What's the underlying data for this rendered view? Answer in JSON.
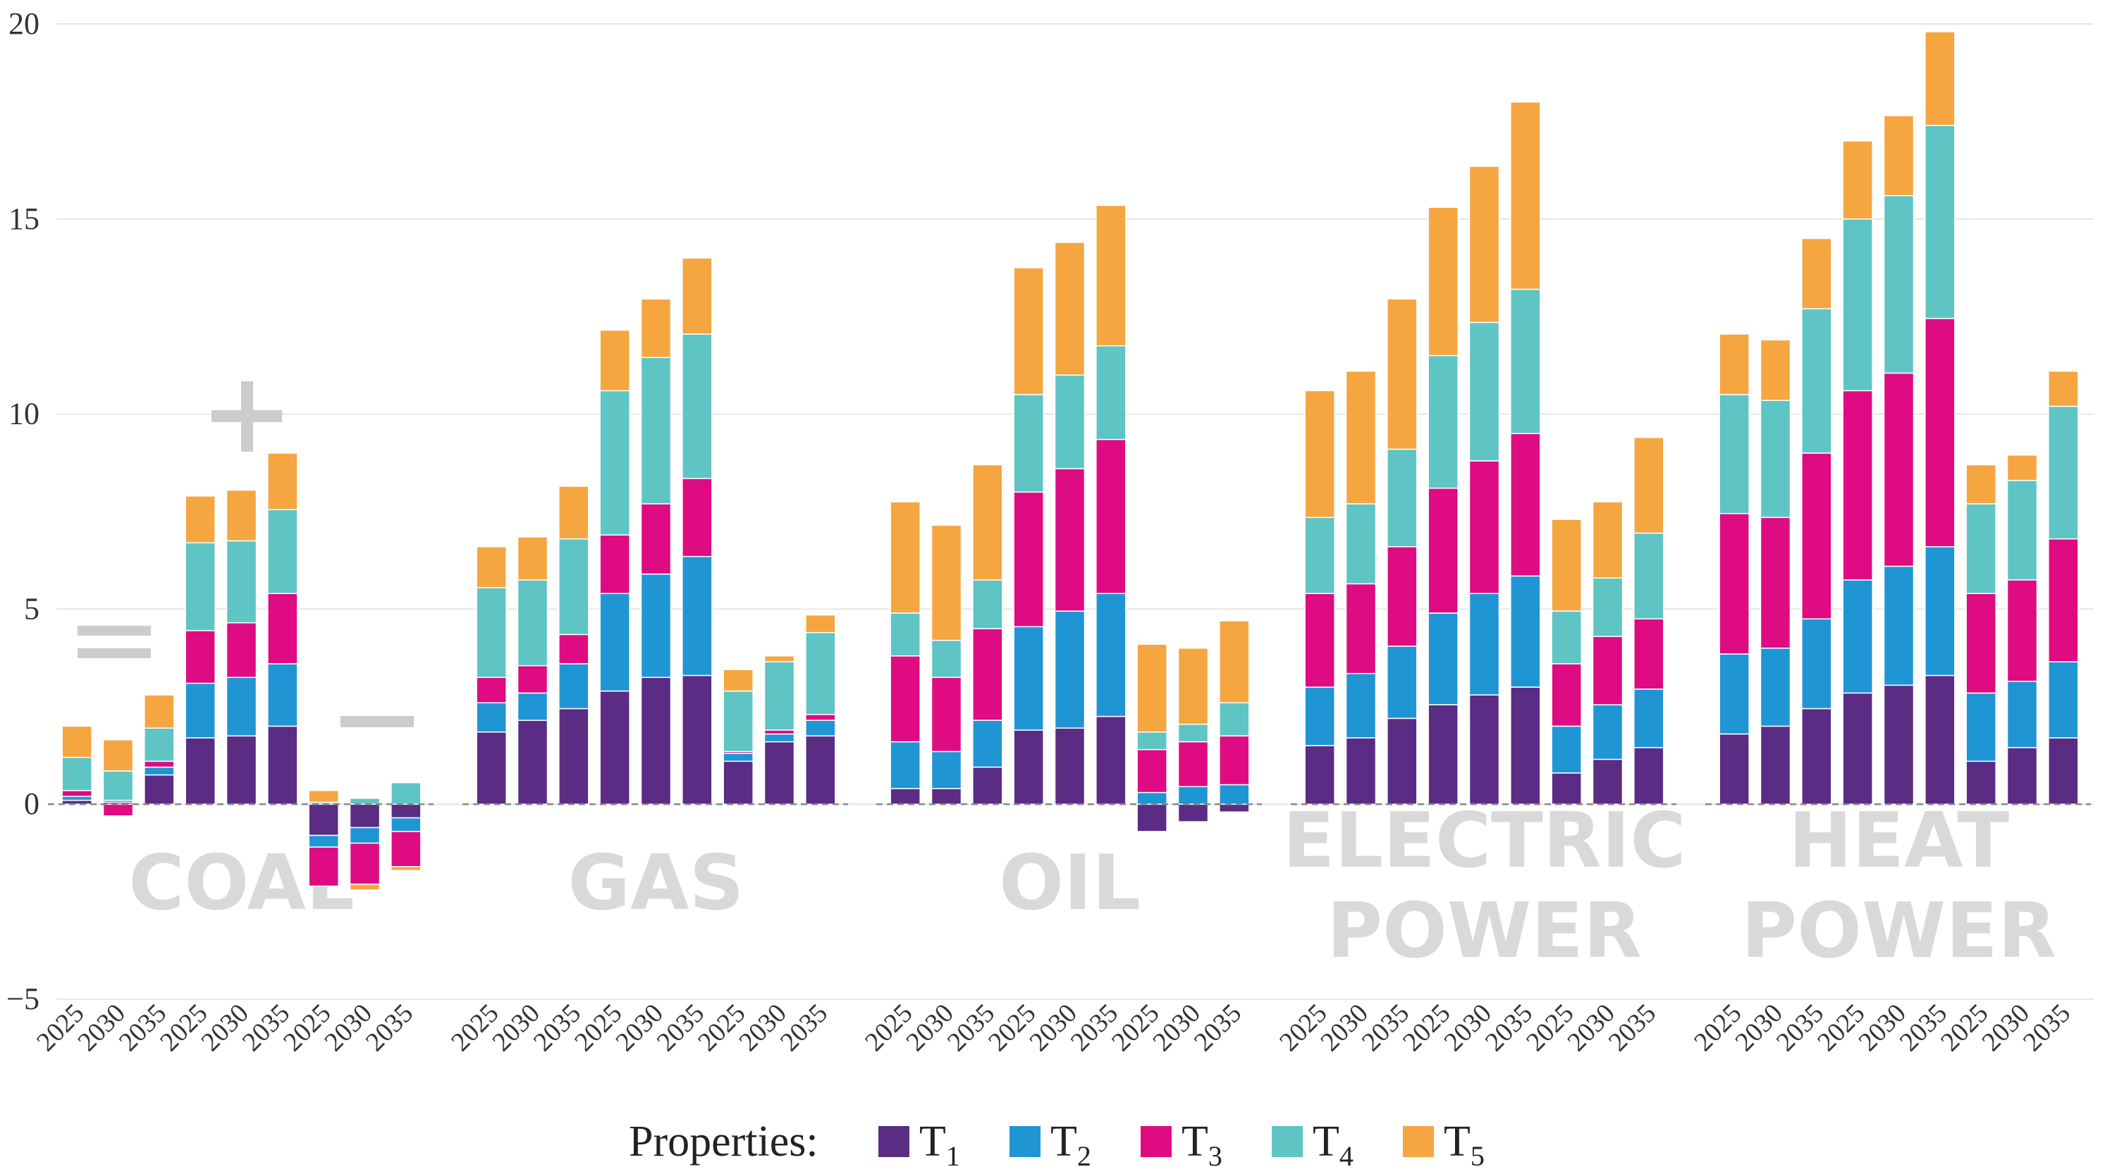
{
  "chart_data": {
    "type": "bar",
    "stacked": true,
    "title": "",
    "xlabel": "",
    "ylabel": "",
    "ylim": [
      -5,
      20
    ],
    "yticks": [
      -5,
      0,
      5,
      10,
      15,
      20
    ],
    "ytick_labels": [
      "−5",
      "0",
      "5",
      "10",
      "15",
      "20"
    ],
    "grid": true,
    "years": [
      "2025",
      "2030",
      "2035"
    ],
    "scenario_marks": [
      {
        "id": "equal",
        "label": "="
      },
      {
        "id": "plus",
        "label": "+"
      },
      {
        "id": "minus",
        "label": "−"
      }
    ],
    "legend": {
      "title": "Properties:",
      "placement": "bottom-center",
      "items": [
        {
          "key": "T1",
          "base": "T",
          "sub": "1",
          "color": "#5b2c83"
        },
        {
          "key": "T2",
          "base": "T",
          "sub": "2",
          "color": "#1f95d4"
        },
        {
          "key": "T3",
          "base": "T",
          "sub": "3",
          "color": "#de0b82"
        },
        {
          "key": "T4",
          "base": "T",
          "sub": "4",
          "color": "#5ec4c4"
        },
        {
          "key": "T5",
          "base": "T",
          "sub": "5",
          "color": "#f5a640"
        }
      ]
    },
    "series_order": [
      "T1",
      "T2",
      "T3",
      "T4",
      "T5"
    ],
    "groups": [
      {
        "name": "COAL",
        "label_lines": [
          "COAL"
        ],
        "bars": [
          {
            "year": "2025",
            "scenario": "equal",
            "values": {
              "T1": 0.1,
              "T2": 0.1,
              "T3": 0.15,
              "T4": 0.85,
              "T5": 0.8
            }
          },
          {
            "year": "2030",
            "scenario": "equal",
            "values": {
              "T1": 0.05,
              "T2": 0.05,
              "T3": -0.3,
              "T4": 0.75,
              "T5": 0.8
            }
          },
          {
            "year": "2035",
            "scenario": "equal",
            "values": {
              "T1": 0.75,
              "T2": 0.2,
              "T3": 0.15,
              "T4": 0.85,
              "T5": 0.85
            }
          },
          {
            "year": "2025",
            "scenario": "plus",
            "values": {
              "T1": 1.7,
              "T2": 1.4,
              "T3": 1.35,
              "T4": 2.25,
              "T5": 1.2
            }
          },
          {
            "year": "2030",
            "scenario": "plus",
            "values": {
              "T1": 1.75,
              "T2": 1.5,
              "T3": 1.4,
              "T4": 2.1,
              "T5": 1.3
            }
          },
          {
            "year": "2035",
            "scenario": "plus",
            "values": {
              "T1": 2.0,
              "T2": 1.6,
              "T3": 1.8,
              "T4": 2.15,
              "T5": 1.45
            }
          },
          {
            "year": "2025",
            "scenario": "minus",
            "values": {
              "T1": -0.8,
              "T2": -0.3,
              "T3": -1.0,
              "T4": 0.05,
              "T5": 0.3
            }
          },
          {
            "year": "2030",
            "scenario": "minus",
            "values": {
              "T1": -0.6,
              "T2": -0.4,
              "T3": -1.05,
              "T4": 0.15,
              "T5": -0.15
            }
          },
          {
            "year": "2035",
            "scenario": "minus",
            "values": {
              "T1": -0.35,
              "T2": -0.35,
              "T3": -0.9,
              "T4": 0.55,
              "T5": -0.1
            }
          }
        ]
      },
      {
        "name": "GAS",
        "label_lines": [
          "GAS"
        ],
        "bars": [
          {
            "year": "2025",
            "scenario": "equal",
            "values": {
              "T1": 1.85,
              "T2": 0.75,
              "T3": 0.65,
              "T4": 2.3,
              "T5": 1.05
            }
          },
          {
            "year": "2030",
            "scenario": "equal",
            "values": {
              "T1": 2.15,
              "T2": 0.7,
              "T3": 0.7,
              "T4": 2.2,
              "T5": 1.1
            }
          },
          {
            "year": "2035",
            "scenario": "equal",
            "values": {
              "T1": 2.45,
              "T2": 1.15,
              "T3": 0.75,
              "T4": 2.45,
              "T5": 1.35
            }
          },
          {
            "year": "2025",
            "scenario": "plus",
            "values": {
              "T1": 2.9,
              "T2": 2.5,
              "T3": 1.5,
              "T4": 3.7,
              "T5": 1.55
            }
          },
          {
            "year": "2030",
            "scenario": "plus",
            "values": {
              "T1": 3.25,
              "T2": 2.65,
              "T3": 1.8,
              "T4": 3.75,
              "T5": 1.5
            }
          },
          {
            "year": "2035",
            "scenario": "plus",
            "values": {
              "T1": 3.3,
              "T2": 3.05,
              "T3": 2.0,
              "T4": 3.7,
              "T5": 1.95
            }
          },
          {
            "year": "2025",
            "scenario": "minus",
            "values": {
              "T1": 1.1,
              "T2": 0.2,
              "T3": 0.05,
              "T4": 1.55,
              "T5": 0.55
            }
          },
          {
            "year": "2030",
            "scenario": "minus",
            "values": {
              "T1": 1.6,
              "T2": 0.2,
              "T3": 0.1,
              "T4": 1.75,
              "T5": 0.15
            }
          },
          {
            "year": "2035",
            "scenario": "minus",
            "values": {
              "T1": 1.75,
              "T2": 0.4,
              "T3": 0.15,
              "T4": 2.1,
              "T5": 0.45
            }
          }
        ]
      },
      {
        "name": "OIL",
        "label_lines": [
          "OIL"
        ],
        "bars": [
          {
            "year": "2025",
            "scenario": "equal",
            "values": {
              "T1": 0.4,
              "T2": 1.2,
              "T3": 2.2,
              "T4": 1.1,
              "T5": 2.85
            }
          },
          {
            "year": "2030",
            "scenario": "equal",
            "values": {
              "T1": 0.4,
              "T2": 0.95,
              "T3": 1.9,
              "T4": 0.95,
              "T5": 2.95
            }
          },
          {
            "year": "2035",
            "scenario": "equal",
            "values": {
              "T1": 0.95,
              "T2": 1.2,
              "T3": 2.35,
              "T4": 1.25,
              "T5": 2.95
            }
          },
          {
            "year": "2025",
            "scenario": "plus",
            "values": {
              "T1": 1.9,
              "T2": 2.65,
              "T3": 3.45,
              "T4": 2.5,
              "T5": 3.25
            }
          },
          {
            "year": "2030",
            "scenario": "plus",
            "values": {
              "T1": 1.95,
              "T2": 3.0,
              "T3": 3.65,
              "T4": 2.4,
              "T5": 3.4
            }
          },
          {
            "year": "2035",
            "scenario": "plus",
            "values": {
              "T1": 2.25,
              "T2": 3.15,
              "T3": 3.95,
              "T4": 2.4,
              "T5": 3.6
            }
          },
          {
            "year": "2025",
            "scenario": "minus",
            "values": {
              "T1": -0.7,
              "T2": 0.3,
              "T3": 1.1,
              "T4": 0.45,
              "T5": 2.25
            }
          },
          {
            "year": "2030",
            "scenario": "minus",
            "values": {
              "T1": -0.45,
              "T2": 0.45,
              "T3": 1.15,
              "T4": 0.45,
              "T5": 1.95
            }
          },
          {
            "year": "2035",
            "scenario": "minus",
            "values": {
              "T1": -0.2,
              "T2": 0.5,
              "T3": 1.25,
              "T4": 0.85,
              "T5": 2.1
            }
          }
        ]
      },
      {
        "name": "ELECTRIC POWER",
        "label_lines": [
          "ELECTRIC",
          "POWER"
        ],
        "bars": [
          {
            "year": "2025",
            "scenario": "equal",
            "values": {
              "T1": 1.5,
              "T2": 1.5,
              "T3": 2.4,
              "T4": 1.95,
              "T5": 3.25
            }
          },
          {
            "year": "2030",
            "scenario": "equal",
            "values": {
              "T1": 1.7,
              "T2": 1.65,
              "T3": 2.3,
              "T4": 2.05,
              "T5": 3.4
            }
          },
          {
            "year": "2035",
            "scenario": "equal",
            "values": {
              "T1": 2.2,
              "T2": 1.85,
              "T3": 2.55,
              "T4": 2.5,
              "T5": 3.85
            }
          },
          {
            "year": "2025",
            "scenario": "plus",
            "values": {
              "T1": 2.55,
              "T2": 2.35,
              "T3": 3.2,
              "T4": 3.4,
              "T5": 3.8
            }
          },
          {
            "year": "2030",
            "scenario": "plus",
            "values": {
              "T1": 2.8,
              "T2": 2.6,
              "T3": 3.4,
              "T4": 3.55,
              "T5": 4.0
            }
          },
          {
            "year": "2035",
            "scenario": "plus",
            "values": {
              "T1": 3.0,
              "T2": 2.85,
              "T3": 3.65,
              "T4": 3.7,
              "T5": 4.8
            }
          },
          {
            "year": "2025",
            "scenario": "minus",
            "values": {
              "T1": 0.8,
              "T2": 1.2,
              "T3": 1.6,
              "T4": 1.35,
              "T5": 2.35
            }
          },
          {
            "year": "2030",
            "scenario": "minus",
            "values": {
              "T1": 1.15,
              "T2": 1.4,
              "T3": 1.75,
              "T4": 1.5,
              "T5": 1.95
            }
          },
          {
            "year": "2035",
            "scenario": "minus",
            "values": {
              "T1": 1.45,
              "T2": 1.5,
              "T3": 1.8,
              "T4": 2.2,
              "T5": 2.45
            }
          }
        ]
      },
      {
        "name": "HEAT POWER",
        "label_lines": [
          "HEAT",
          "POWER"
        ],
        "bars": [
          {
            "year": "2025",
            "scenario": "equal",
            "values": {
              "T1": 1.8,
              "T2": 2.05,
              "T3": 3.6,
              "T4": 3.05,
              "T5": 1.55
            }
          },
          {
            "year": "2030",
            "scenario": "equal",
            "values": {
              "T1": 2.0,
              "T2": 2.0,
              "T3": 3.35,
              "T4": 3.0,
              "T5": 1.55
            }
          },
          {
            "year": "2035",
            "scenario": "equal",
            "values": {
              "T1": 2.45,
              "T2": 2.3,
              "T3": 4.25,
              "T4": 3.7,
              "T5": 1.8
            }
          },
          {
            "year": "2025",
            "scenario": "plus",
            "values": {
              "T1": 2.85,
              "T2": 2.9,
              "T3": 4.85,
              "T4": 4.4,
              "T5": 2.0
            }
          },
          {
            "year": "2030",
            "scenario": "plus",
            "values": {
              "T1": 3.05,
              "T2": 3.05,
              "T3": 4.95,
              "T4": 4.55,
              "T5": 2.05
            }
          },
          {
            "year": "2035",
            "scenario": "plus",
            "values": {
              "T1": 3.3,
              "T2": 3.3,
              "T3": 5.85,
              "T4": 4.95,
              "T5": 2.4
            }
          },
          {
            "year": "2025",
            "scenario": "minus",
            "values": {
              "T1": 1.1,
              "T2": 1.75,
              "T3": 2.55,
              "T4": 2.3,
              "T5": 1.0
            }
          },
          {
            "year": "2030",
            "scenario": "minus",
            "values": {
              "T1": 1.45,
              "T2": 1.7,
              "T3": 2.6,
              "T4": 2.55,
              "T5": 0.65
            }
          },
          {
            "year": "2035",
            "scenario": "minus",
            "values": {
              "T1": 1.7,
              "T2": 1.95,
              "T3": 3.15,
              "T4": 3.4,
              "T5": 0.9
            }
          }
        ]
      }
    ]
  }
}
